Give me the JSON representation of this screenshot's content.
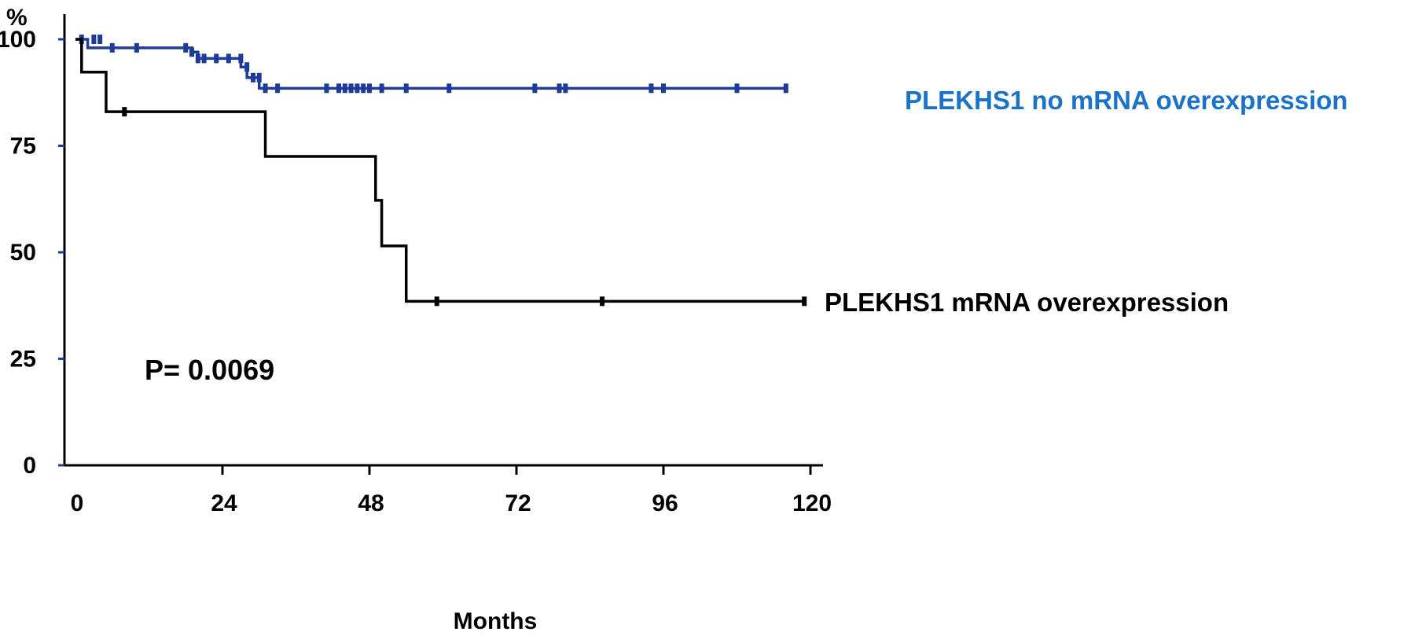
{
  "chart_data": {
    "type": "line",
    "xlabel": "Months",
    "ylabel": "%",
    "xlim": [
      0,
      120
    ],
    "ylim": [
      0,
      100
    ],
    "x_ticks": [
      0,
      24,
      48,
      72,
      96,
      120
    ],
    "y_ticks": [
      0,
      25,
      50,
      75,
      100
    ],
    "x_tick_labels": [
      "0",
      "24",
      "48",
      "72",
      "96",
      "120"
    ],
    "y_tick_labels": [
      "0",
      "25",
      "50",
      "75",
      "100"
    ],
    "grid": false,
    "annotation": "P= 0.0069",
    "series": [
      {
        "name": "PLEKHS1 no mRNA overexpression",
        "color": "#1f3b9a",
        "label_color": "#1a73c9",
        "step_x": [
          0,
          2,
          18,
          19,
          20,
          21,
          22,
          23,
          27,
          28,
          30,
          31,
          116
        ],
        "step_y": [
          100,
          98,
          98,
          97,
          95.5,
          95.5,
          95.5,
          95.5,
          93.5,
          91,
          88.5,
          88.5,
          88.5
        ],
        "censor_x": [
          1,
          3,
          4,
          6,
          10,
          18,
          19,
          20,
          21,
          23,
          25,
          27,
          28,
          29,
          30,
          31,
          33,
          41,
          43,
          44,
          45,
          46,
          47,
          48,
          50,
          54,
          61,
          75,
          79,
          80,
          94,
          96,
          108,
          116
        ],
        "censor_y": [
          100,
          100,
          100,
          98,
          98,
          98,
          97,
          95.5,
          95.5,
          95.5,
          95.5,
          95.5,
          93.5,
          91,
          91,
          88.5,
          88.5,
          88.5,
          88.5,
          88.5,
          88.5,
          88.5,
          88.5,
          88.5,
          88.5,
          88.5,
          88.5,
          88.5,
          88.5,
          88.5,
          88.5,
          88.5,
          88.5,
          88.5
        ]
      },
      {
        "name": "PLEKHS1 mRNA overexpression",
        "color": "#000000",
        "label_color": "#000000",
        "step_x": [
          0,
          1,
          5,
          31,
          49,
          50,
          51,
          54,
          119
        ],
        "step_y": [
          100,
          92.3,
          83,
          72.5,
          62.2,
          51.5,
          51.5,
          38.5,
          38.5
        ],
        "censor_x": [
          8,
          59,
          86,
          119
        ],
        "censor_y": [
          83,
          38.5,
          38.5,
          38.5
        ]
      }
    ]
  }
}
